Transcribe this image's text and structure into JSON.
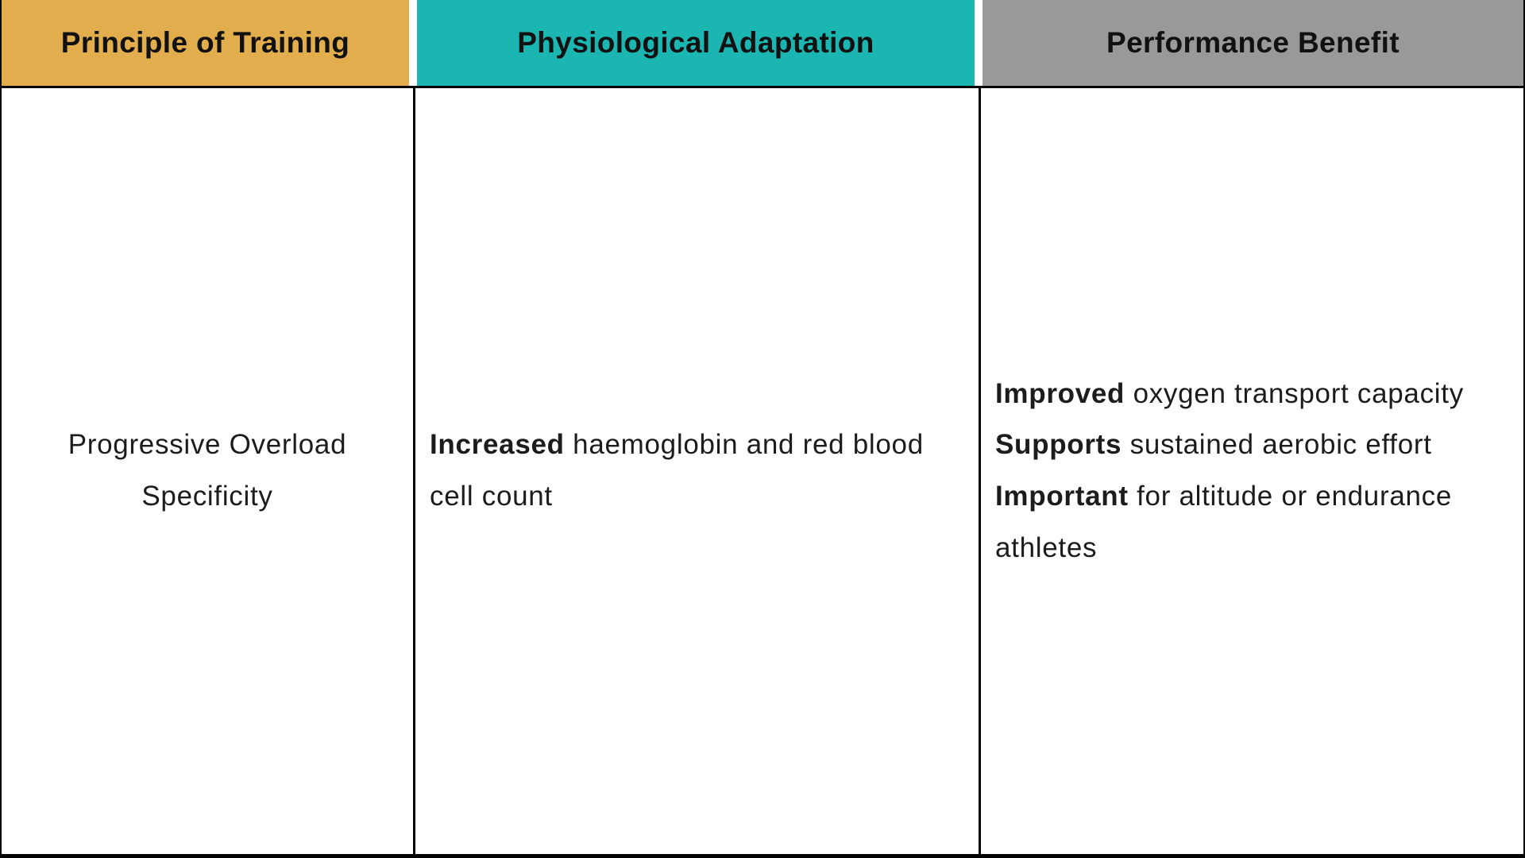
{
  "table": {
    "headers": [
      {
        "label": "Principle of Training",
        "bg": "#E2AD4D"
      },
      {
        "label": "Physiological Adaptation",
        "bg": "#1BB6B1"
      },
      {
        "label": "Performance Benefit",
        "bg": "#99989A"
      }
    ],
    "row": {
      "principle_lines": [
        "Progressive Overload",
        "Specificity"
      ],
      "adaptation": {
        "bold": "Increased",
        "rest": " haemoglobin and red blood cell count"
      },
      "benefits": [
        {
          "bold": "Improved",
          "rest": " oxygen transport capacity"
        },
        {
          "bold": "Supports",
          "rest": " sustained aerobic effort"
        },
        {
          "bold": "Important",
          "rest": " for altitude or endurance athletes"
        }
      ]
    },
    "colors": {
      "border": "#000000",
      "text": "#1c1c1c"
    }
  }
}
